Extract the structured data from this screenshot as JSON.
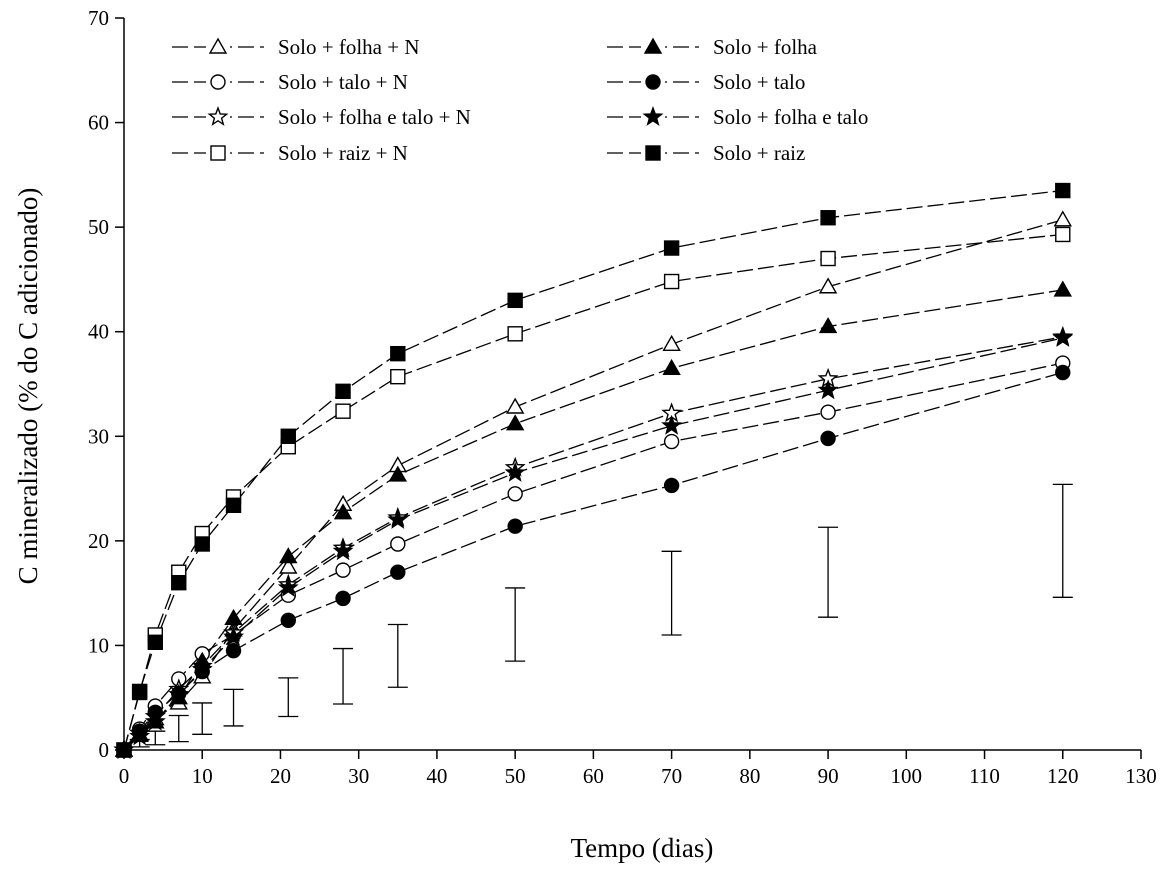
{
  "chart_data": {
    "type": "line",
    "xlabel": "Tempo (dias)",
    "ylabel": "C mineralizado (% do C adicionado)",
    "xlim": [
      0,
      130
    ],
    "ylim": [
      0,
      70
    ],
    "xticks": [
      0,
      10,
      20,
      30,
      40,
      50,
      60,
      70,
      80,
      90,
      100,
      110,
      120,
      130
    ],
    "yticks": [
      0,
      10,
      20,
      30,
      40,
      50,
      60,
      70
    ],
    "grid": false,
    "legend_position": "top-left",
    "x": [
      0,
      2,
      4,
      7,
      10,
      14,
      21,
      28,
      35,
      50,
      70,
      90,
      120
    ],
    "series": [
      {
        "name": "Solo + folha + N",
        "marker": "triangle-open",
        "values": [
          0,
          1.5,
          3.0,
          4.5,
          7.0,
          11.5,
          17.5,
          23.5,
          27.2,
          32.8,
          38.8,
          44.3,
          50.7
        ]
      },
      {
        "name": "Solo + talo + N",
        "marker": "circle-open",
        "values": [
          0,
          2.0,
          4.2,
          6.8,
          9.2,
          11.0,
          14.8,
          17.2,
          19.7,
          24.5,
          29.5,
          32.3,
          37.0
        ]
      },
      {
        "name": "Solo + folha e talo + N",
        "marker": "star-open",
        "values": [
          0,
          1.6,
          3.2,
          5.8,
          8.0,
          11.2,
          15.8,
          19.3,
          22.2,
          27.0,
          32.2,
          35.5,
          39.5
        ]
      },
      {
        "name": "Solo + raiz + N",
        "marker": "square-open",
        "values": [
          0,
          5.5,
          11.0,
          17.0,
          20.7,
          24.2,
          29.0,
          32.4,
          35.7,
          39.8,
          44.8,
          47.0,
          49.3
        ]
      },
      {
        "name": "Solo + folha",
        "marker": "triangle-filled",
        "values": [
          0,
          1.4,
          2.7,
          5.0,
          8.5,
          12.6,
          18.5,
          22.7,
          26.3,
          31.2,
          36.5,
          40.5,
          44.0
        ]
      },
      {
        "name": "Solo + talo",
        "marker": "circle-filled",
        "values": [
          0,
          1.8,
          3.6,
          5.4,
          7.5,
          9.5,
          12.4,
          14.5,
          17.0,
          21.4,
          25.3,
          29.8,
          36.1
        ]
      },
      {
        "name": "Solo + folha e talo",
        "marker": "star-filled",
        "values": [
          0,
          1.3,
          2.7,
          5.3,
          7.7,
          10.8,
          15.5,
          19.0,
          22.0,
          26.5,
          31.0,
          34.4,
          39.4
        ]
      },
      {
        "name": "Solo + raiz",
        "marker": "square-filled",
        "values": [
          0,
          5.6,
          10.3,
          16.0,
          19.7,
          23.4,
          30.0,
          34.3,
          37.9,
          43.0,
          48.0,
          50.9,
          53.5
        ]
      }
    ],
    "error_bars": [
      {
        "x": 2,
        "low": 0.3,
        "high": 1.0
      },
      {
        "x": 4,
        "low": 0.5,
        "high": 1.8
      },
      {
        "x": 7,
        "low": 0.8,
        "high": 3.3
      },
      {
        "x": 10,
        "low": 1.5,
        "high": 4.5
      },
      {
        "x": 14,
        "low": 2.3,
        "high": 5.8
      },
      {
        "x": 21,
        "low": 3.2,
        "high": 6.9
      },
      {
        "x": 28,
        "low": 4.4,
        "high": 9.7
      },
      {
        "x": 35,
        "low": 6.0,
        "high": 12.0
      },
      {
        "x": 50,
        "low": 8.5,
        "high": 15.5
      },
      {
        "x": 70,
        "low": 11.0,
        "high": 19.0
      },
      {
        "x": 90,
        "low": 12.7,
        "high": 21.3
      },
      {
        "x": 120,
        "low": 14.6,
        "high": 25.4
      }
    ]
  }
}
